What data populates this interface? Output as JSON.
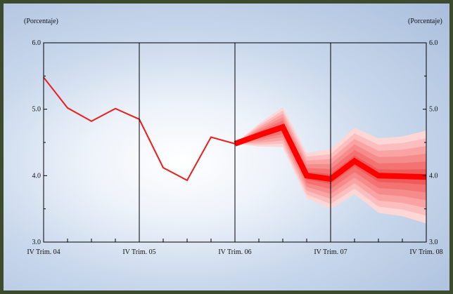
{
  "chart_data": {
    "type": "line",
    "ylabel_left": "(Porcentaje)",
    "ylabel_right": "(Porcentaje)",
    "ylim": [
      3.0,
      6.0
    ],
    "yticks": [
      "3.0",
      "4.0",
      "5.0",
      "6.0"
    ],
    "x_tick_labels": [
      "IV Trim. 04",
      "IV Trim. 05",
      "IV Trim. 06",
      "IV Trim. 07",
      "IV Trim. 08"
    ],
    "grid": "vertical lines at each IV Trim.",
    "series": [
      {
        "kind": "historical",
        "color": "#ee1c1c",
        "quarters": [
          "IV 04",
          "I 05",
          "II 05",
          "III 05",
          "IV 05",
          "I 06",
          "II 06",
          "III 06",
          "IV 06"
        ],
        "values": [
          5.48,
          5.02,
          4.82,
          5.01,
          4.85,
          4.12,
          3.93,
          4.58,
          4.48
        ]
      },
      {
        "kind": "forecast_central",
        "color": "#ff0000",
        "quarters": [
          "IV 06",
          "I 07",
          "II 07",
          "III 07",
          "IV 07",
          "I 08",
          "II 08",
          "III 08",
          "IV 08"
        ],
        "values": [
          4.48,
          4.61,
          4.73,
          4.0,
          3.95,
          4.22,
          4.0,
          3.99,
          3.98
        ]
      }
    ],
    "fan_band_widths": [
      0.0,
      0.17,
      0.3,
      0.34,
      0.45,
      0.5,
      0.56,
      0.6,
      0.7
    ],
    "fan_colors": [
      "#fdd6d6",
      "#fbbdbd",
      "#f9a3a3",
      "#f68b8b",
      "#f37272",
      "#ef5a5a"
    ]
  }
}
